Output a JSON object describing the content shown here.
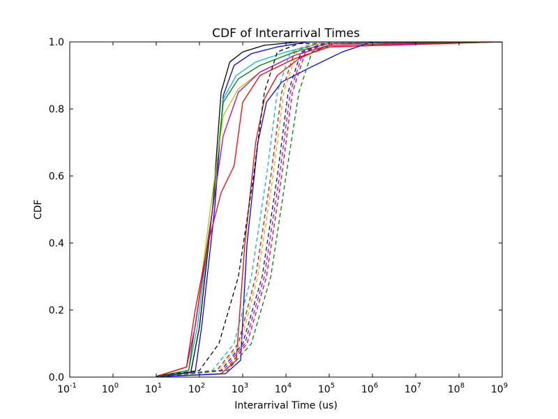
{
  "chart_data": {
    "type": "line",
    "title": "CDF of Interarrival Times",
    "xlabel": "Interarrival Time (us)",
    "ylabel": "CDF",
    "xscale": "log",
    "xlim_exp": [
      -1,
      9
    ],
    "ylim": [
      0,
      1
    ],
    "x_ticks": [
      {
        "base": "10",
        "exp": "-1"
      },
      {
        "base": "10",
        "exp": "0"
      },
      {
        "base": "10",
        "exp": "1"
      },
      {
        "base": "10",
        "exp": "2"
      },
      {
        "base": "10",
        "exp": "3"
      },
      {
        "base": "10",
        "exp": "4"
      },
      {
        "base": "10",
        "exp": "5"
      },
      {
        "base": "10",
        "exp": "6"
      },
      {
        "base": "10",
        "exp": "7"
      },
      {
        "base": "10",
        "exp": "8"
      },
      {
        "base": "10",
        "exp": "9"
      }
    ],
    "y_ticks": [
      "0.0",
      "0.2",
      "0.4",
      "0.6",
      "0.8",
      "1.0"
    ],
    "grid": false,
    "legend": "none",
    "series": [
      {
        "color": "#000000",
        "style": "solid",
        "points": [
          [
            1,
            0.001
          ],
          [
            1.8,
            0.015
          ],
          [
            2.0,
            0.15
          ],
          [
            2.3,
            0.5
          ],
          [
            2.5,
            0.85
          ],
          [
            2.7,
            0.94
          ],
          [
            3.0,
            0.97
          ],
          [
            3.5,
            0.99
          ],
          [
            4.3,
            1.0
          ],
          [
            9,
            1.0
          ]
        ]
      },
      {
        "color": "#0000ff",
        "style": "solid",
        "points": [
          [
            1,
            0.001
          ],
          [
            1.9,
            0.015
          ],
          [
            2.05,
            0.15
          ],
          [
            2.35,
            0.5
          ],
          [
            2.55,
            0.84
          ],
          [
            2.8,
            0.93
          ],
          [
            3.2,
            0.965
          ],
          [
            3.8,
            0.985
          ],
          [
            4.5,
            1.0
          ],
          [
            9,
            1.0
          ]
        ]
      },
      {
        "color": "#00bfbf",
        "style": "solid",
        "points": [
          [
            1,
            0.002
          ],
          [
            1.75,
            0.02
          ],
          [
            1.95,
            0.15
          ],
          [
            2.3,
            0.5
          ],
          [
            2.55,
            0.83
          ],
          [
            2.85,
            0.9
          ],
          [
            3.3,
            0.94
          ],
          [
            4.0,
            0.97
          ],
          [
            4.8,
            0.995
          ],
          [
            9,
            1.0
          ]
        ]
      },
      {
        "color": "#008000",
        "style": "solid",
        "points": [
          [
            1,
            0.002
          ],
          [
            1.75,
            0.02
          ],
          [
            1.95,
            0.2
          ],
          [
            2.3,
            0.5
          ],
          [
            2.55,
            0.82
          ],
          [
            2.9,
            0.89
          ],
          [
            3.4,
            0.93
          ],
          [
            4.2,
            0.97
          ],
          [
            5.0,
            0.995
          ],
          [
            9,
            1.0
          ]
        ]
      },
      {
        "color": "#bfbf00",
        "style": "solid",
        "points": [
          [
            1,
            0.002
          ],
          [
            1.7,
            0.03
          ],
          [
            1.9,
            0.15
          ],
          [
            2.25,
            0.5
          ],
          [
            2.55,
            0.78
          ],
          [
            2.9,
            0.86
          ],
          [
            3.4,
            0.91
          ],
          [
            4.2,
            0.96
          ],
          [
            5.0,
            0.99
          ],
          [
            9,
            1.0
          ]
        ]
      },
      {
        "color": "#bf00bf",
        "style": "solid",
        "points": [
          [
            1,
            0.002
          ],
          [
            1.7,
            0.03
          ],
          [
            1.9,
            0.15
          ],
          [
            2.25,
            0.45
          ],
          [
            2.55,
            0.72
          ],
          [
            2.9,
            0.85
          ],
          [
            3.4,
            0.91
          ],
          [
            4.2,
            0.96
          ],
          [
            5.0,
            0.99
          ],
          [
            9,
            1.0
          ]
        ]
      },
      {
        "color": "#ff0000",
        "style": "solid",
        "points": [
          [
            1,
            0.002
          ],
          [
            1.7,
            0.03
          ],
          [
            1.9,
            0.2
          ],
          [
            2.2,
            0.4
          ],
          [
            2.5,
            0.55
          ],
          [
            2.8,
            0.63
          ],
          [
            3.0,
            0.82
          ],
          [
            3.4,
            0.9
          ],
          [
            4.2,
            0.95
          ],
          [
            5.0,
            0.985
          ],
          [
            9,
            1.0
          ]
        ]
      },
      {
        "color": "#ff0000",
        "style": "solid",
        "points": [
          [
            1,
            0.001
          ],
          [
            2.5,
            0.01
          ],
          [
            2.85,
            0.05
          ],
          [
            3.05,
            0.4
          ],
          [
            3.3,
            0.7
          ],
          [
            3.5,
            0.83
          ],
          [
            3.8,
            0.9
          ],
          [
            4.3,
            0.95
          ],
          [
            4.9,
            0.985
          ],
          [
            9,
            1.0
          ]
        ]
      },
      {
        "color": "#0000ff",
        "style": "solid",
        "points": [
          [
            1,
            0.001
          ],
          [
            2.6,
            0.01
          ],
          [
            2.95,
            0.05
          ],
          [
            3.1,
            0.4
          ],
          [
            3.35,
            0.7
          ],
          [
            3.55,
            0.82
          ],
          [
            3.9,
            0.88
          ],
          [
            4.5,
            0.92
          ],
          [
            5.3,
            0.97
          ],
          [
            6.0,
            1.0
          ],
          [
            9,
            1.0
          ]
        ]
      },
      {
        "color": "#000000",
        "style": "dashed",
        "points": [
          [
            1,
            0.002
          ],
          [
            2.0,
            0.02
          ],
          [
            2.45,
            0.1
          ],
          [
            2.9,
            0.3
          ],
          [
            3.25,
            0.6
          ],
          [
            3.5,
            0.85
          ],
          [
            3.8,
            0.97
          ],
          [
            4.3,
            0.995
          ],
          [
            9,
            1.0
          ]
        ]
      },
      {
        "color": "#00bfbf",
        "style": "dashed",
        "points": [
          [
            1,
            0.001
          ],
          [
            2.3,
            0.02
          ],
          [
            2.8,
            0.1
          ],
          [
            3.2,
            0.3
          ],
          [
            3.55,
            0.6
          ],
          [
            3.8,
            0.85
          ],
          [
            4.1,
            0.97
          ],
          [
            4.6,
            0.995
          ],
          [
            9,
            1.0
          ]
        ]
      },
      {
        "color": "#ff0000",
        "style": "dashed",
        "points": [
          [
            1,
            0.001
          ],
          [
            2.4,
            0.02
          ],
          [
            2.9,
            0.1
          ],
          [
            3.3,
            0.3
          ],
          [
            3.65,
            0.6
          ],
          [
            3.9,
            0.85
          ],
          [
            4.2,
            0.97
          ],
          [
            4.7,
            0.995
          ],
          [
            9,
            1.0
          ]
        ]
      },
      {
        "color": "#bfbf00",
        "style": "dashed",
        "points": [
          [
            1,
            0.001
          ],
          [
            2.45,
            0.02
          ],
          [
            2.95,
            0.1
          ],
          [
            3.35,
            0.3
          ],
          [
            3.7,
            0.6
          ],
          [
            3.95,
            0.85
          ],
          [
            4.25,
            0.97
          ],
          [
            4.75,
            0.995
          ],
          [
            9,
            1.0
          ]
        ]
      },
      {
        "color": "#0000ff",
        "style": "dashed",
        "points": [
          [
            1,
            0.001
          ],
          [
            2.5,
            0.02
          ],
          [
            3.0,
            0.1
          ],
          [
            3.45,
            0.3
          ],
          [
            3.8,
            0.6
          ],
          [
            4.05,
            0.85
          ],
          [
            4.35,
            0.97
          ],
          [
            4.85,
            0.995
          ],
          [
            9,
            1.0
          ]
        ]
      },
      {
        "color": "#bf00bf",
        "style": "dashed",
        "points": [
          [
            1,
            0.001
          ],
          [
            2.55,
            0.02
          ],
          [
            3.05,
            0.1
          ],
          [
            3.5,
            0.3
          ],
          [
            3.85,
            0.6
          ],
          [
            4.1,
            0.85
          ],
          [
            4.4,
            0.97
          ],
          [
            4.9,
            0.995
          ],
          [
            9,
            1.0
          ]
        ]
      },
      {
        "color": "#ff0000",
        "style": "dashed",
        "points": [
          [
            1,
            0.001
          ],
          [
            2.6,
            0.02
          ],
          [
            3.1,
            0.1
          ],
          [
            3.55,
            0.3
          ],
          [
            3.9,
            0.6
          ],
          [
            4.15,
            0.85
          ],
          [
            4.45,
            0.97
          ],
          [
            4.95,
            0.995
          ],
          [
            9,
            1.0
          ]
        ]
      },
      {
        "color": "#008000",
        "style": "dashed",
        "points": [
          [
            1,
            0.001
          ],
          [
            2.65,
            0.02
          ],
          [
            3.2,
            0.1
          ],
          [
            3.65,
            0.3
          ],
          [
            4.0,
            0.6
          ],
          [
            4.3,
            0.85
          ],
          [
            4.6,
            0.97
          ],
          [
            5.1,
            0.995
          ],
          [
            9,
            1.0
          ]
        ]
      }
    ]
  }
}
